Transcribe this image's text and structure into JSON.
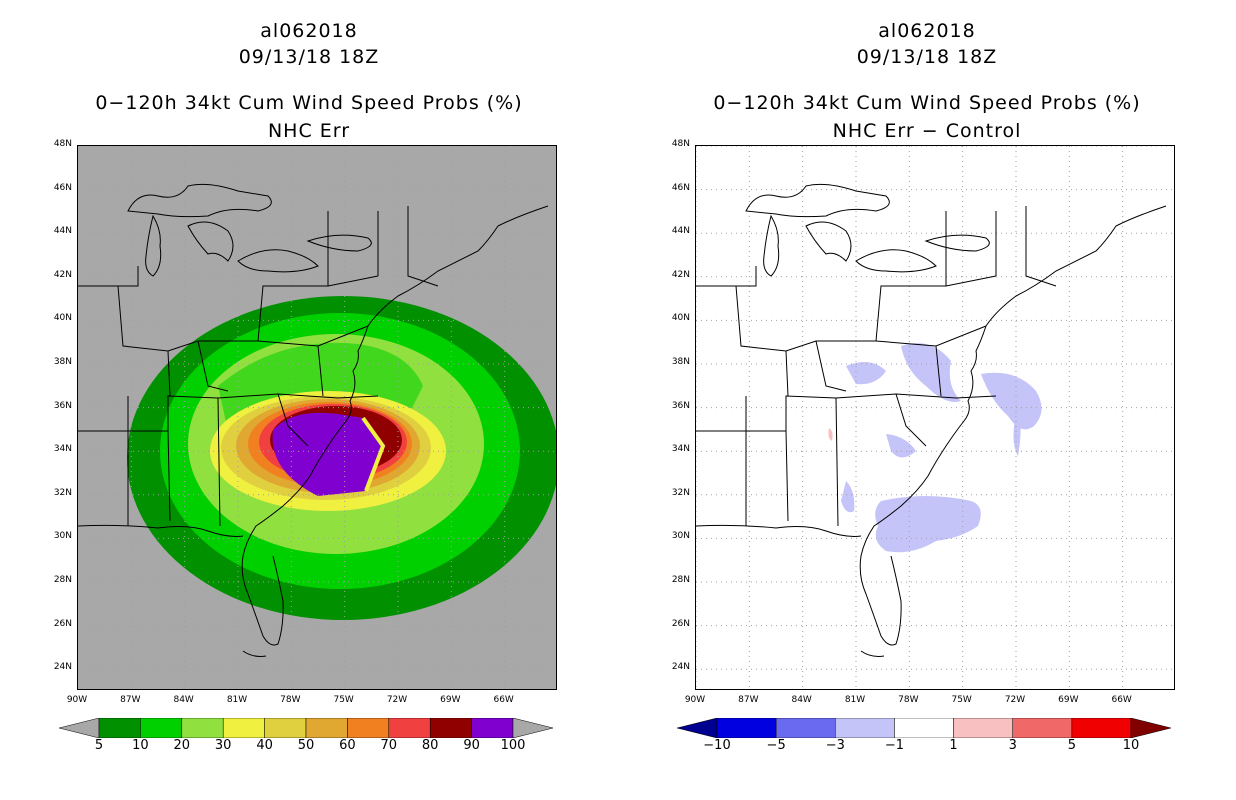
{
  "left": {
    "storm_id": "al062018",
    "datetime": "09/13/18 18Z",
    "product": "0−120h 34kt Cum Wind Speed Probs (%)",
    "subtitle": "NHC Err",
    "colorbar": {
      "labels": [
        "5",
        "10",
        "20",
        "30",
        "40",
        "50",
        "60",
        "70",
        "80",
        "90",
        "100"
      ],
      "colors": [
        "#009000",
        "#00d000",
        "#90e040",
        "#f0f040",
        "#e0d040",
        "#e0a830",
        "#f08020",
        "#f04040",
        "#900000",
        "#8000d0"
      ],
      "under_color": "#a8a8a8",
      "over_color": "#a8a8a8"
    }
  },
  "right": {
    "storm_id": "al062018",
    "datetime": "09/13/18 18Z",
    "product": "0−120h 34kt Cum Wind Speed Probs (%)",
    "subtitle": "NHC Err − Control",
    "colorbar": {
      "labels": [
        "−10",
        "−5",
        "−3",
        "−1",
        "1",
        "3",
        "5",
        "10"
      ],
      "colors": [
        "#0000e0",
        "#6a6af0",
        "#c4c4f8",
        "#ffffff",
        "#f8c0c0",
        "#f06868",
        "#f00000"
      ],
      "under_color": "#000090",
      "over_color": "#800000"
    }
  },
  "axes": {
    "lat_labels": [
      "48N",
      "46N",
      "44N",
      "42N",
      "40N",
      "38N",
      "36N",
      "34N",
      "32N",
      "30N",
      "28N",
      "26N",
      "24N"
    ],
    "lon_labels": [
      "90W",
      "87W",
      "84W",
      "81W",
      "78W",
      "75W",
      "72W",
      "69W",
      "66W"
    ],
    "lat_range": [
      23,
      48
    ],
    "lon_range": [
      -90,
      -63
    ]
  },
  "colors": {
    "land_gray": "#a8a8a8",
    "coast": "#000000",
    "grid": "#a0a0a0"
  }
}
